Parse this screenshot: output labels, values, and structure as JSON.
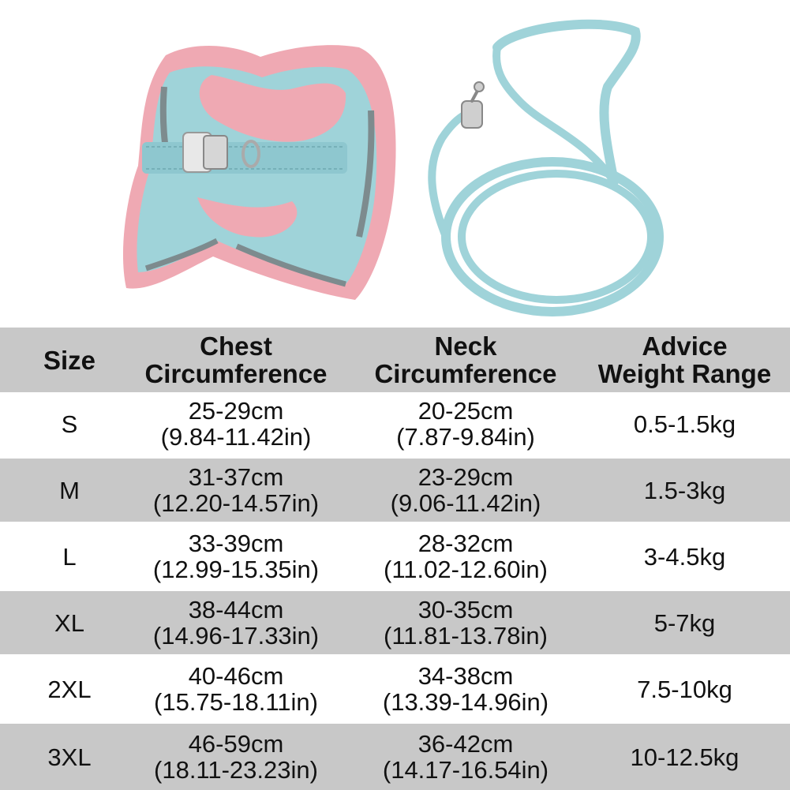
{
  "product": {
    "harness_icon": "pet-harness-vest-icon",
    "leash_icon": "pet-leash-icon",
    "colors": {
      "mint": "#9fd3d9",
      "pink": "#efa9b3",
      "grey": "#7d8b8e",
      "header_bg": "#c8c8c8"
    }
  },
  "table": {
    "headers": {
      "size": "Size",
      "chest": [
        "Chest",
        "Circumference"
      ],
      "neck": [
        "Neck",
        "Circumference"
      ],
      "weight": [
        "Advice",
        "Weight Range"
      ]
    },
    "rows": [
      {
        "size": "S",
        "chest_cm": "25-29cm",
        "chest_in": "(9.84-11.42in)",
        "neck_cm": "20-25cm",
        "neck_in": "(7.87-9.84in)",
        "weight": "0.5-1.5kg"
      },
      {
        "size": "M",
        "chest_cm": "31-37cm",
        "chest_in": "(12.20-14.57in)",
        "neck_cm": "23-29cm",
        "neck_in": "(9.06-11.42in)",
        "weight": "1.5-3kg"
      },
      {
        "size": "L",
        "chest_cm": "33-39cm",
        "chest_in": "(12.99-15.35in)",
        "neck_cm": "28-32cm",
        "neck_in": "(11.02-12.60in)",
        "weight": "3-4.5kg"
      },
      {
        "size": "XL",
        "chest_cm": "38-44cm",
        "chest_in": "(14.96-17.33in)",
        "neck_cm": "30-35cm",
        "neck_in": "(11.81-13.78in)",
        "weight": "5-7kg"
      },
      {
        "size": "2XL",
        "chest_cm": "40-46cm",
        "chest_in": "(15.75-18.11in)",
        "neck_cm": "34-38cm",
        "neck_in": "(13.39-14.96in)",
        "weight": "7.5-10kg"
      },
      {
        "size": "3XL",
        "chest_cm": "46-59cm",
        "chest_in": "(18.11-23.23in)",
        "neck_cm": "36-42cm",
        "neck_in": "(14.17-16.54in)",
        "weight": "10-12.5kg"
      }
    ]
  }
}
